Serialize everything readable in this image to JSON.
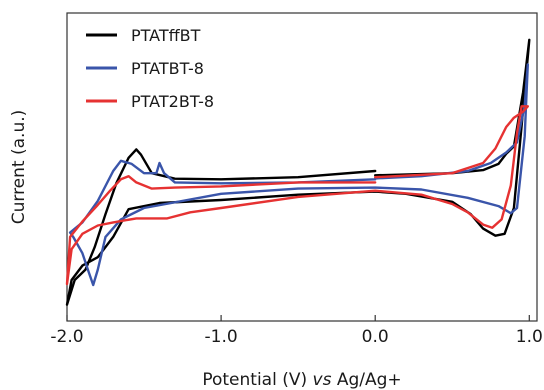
{
  "chart_data": {
    "type": "line",
    "xlabel_parts": [
      {
        "text": "Potential (V) ",
        "italic": false
      },
      {
        "text": "vs",
        "italic": true
      },
      {
        "text": " Ag/Ag+",
        "italic": false
      }
    ],
    "ylabel": "Current (a.u.)",
    "xlim": [
      -2.0,
      1.05
    ],
    "ylim": [
      0.0,
      1.0
    ],
    "x_ticks": [
      {
        "value": -2.0,
        "label": "-2.0"
      },
      {
        "value": -1.0,
        "label": "-1.0"
      },
      {
        "value": 0.0,
        "label": "0.0"
      },
      {
        "value": 1.0,
        "label": "1.0"
      }
    ],
    "y_ticks_shown": false,
    "grid": false,
    "legend_position": "top-left",
    "series": [
      {
        "name": "PTATffBT",
        "color": "#000000",
        "points": [
          [
            0.0,
            0.487
          ],
          [
            -0.5,
            0.467
          ],
          [
            -1.0,
            0.46
          ],
          [
            -1.3,
            0.462
          ],
          [
            -1.45,
            0.48
          ],
          [
            -1.52,
            0.54
          ],
          [
            -1.55,
            0.557
          ],
          [
            -1.6,
            0.53
          ],
          [
            -1.68,
            0.447
          ],
          [
            -1.75,
            0.347
          ],
          [
            -1.82,
            0.24
          ],
          [
            -1.88,
            0.167
          ],
          [
            -1.95,
            0.133
          ],
          [
            -2.0,
            0.053
          ],
          [
            -1.97,
            0.133
          ],
          [
            -1.9,
            0.18
          ],
          [
            -1.8,
            0.207
          ],
          [
            -1.7,
            0.273
          ],
          [
            -1.6,
            0.363
          ],
          [
            -1.4,
            0.383
          ],
          [
            -1.0,
            0.393
          ],
          [
            -0.5,
            0.41
          ],
          [
            0.0,
            0.42
          ],
          [
            0.2,
            0.413
          ],
          [
            0.5,
            0.387
          ],
          [
            0.62,
            0.347
          ],
          [
            0.7,
            0.3
          ],
          [
            0.78,
            0.277
          ],
          [
            0.84,
            0.283
          ],
          [
            0.9,
            0.367
          ],
          [
            0.95,
            0.633
          ],
          [
            1.0,
            0.913
          ],
          [
            0.96,
            0.743
          ],
          [
            0.9,
            0.567
          ],
          [
            0.85,
            0.543
          ],
          [
            0.8,
            0.51
          ],
          [
            0.7,
            0.49
          ],
          [
            0.5,
            0.48
          ],
          [
            0.3,
            0.477
          ],
          [
            0.0,
            0.473
          ]
        ]
      },
      {
        "name": "PTATBT-8",
        "color": "#3a55aa",
        "points": [
          [
            0.0,
            0.46
          ],
          [
            -0.5,
            0.45
          ],
          [
            -1.0,
            0.447
          ],
          [
            -1.3,
            0.45
          ],
          [
            -1.37,
            0.48
          ],
          [
            -1.4,
            0.513
          ],
          [
            -1.42,
            0.48
          ],
          [
            -1.5,
            0.48
          ],
          [
            -1.58,
            0.51
          ],
          [
            -1.65,
            0.52
          ],
          [
            -1.7,
            0.487
          ],
          [
            -1.8,
            0.39
          ],
          [
            -1.9,
            0.32
          ],
          [
            -1.98,
            0.287
          ],
          [
            -1.96,
            0.273
          ],
          [
            -1.9,
            0.22
          ],
          [
            -1.86,
            0.16
          ],
          [
            -1.83,
            0.117
          ],
          [
            -1.8,
            0.167
          ],
          [
            -1.75,
            0.273
          ],
          [
            -1.65,
            0.33
          ],
          [
            -1.5,
            0.367
          ],
          [
            -1.0,
            0.413
          ],
          [
            -0.5,
            0.43
          ],
          [
            0.0,
            0.433
          ],
          [
            0.3,
            0.427
          ],
          [
            0.6,
            0.4
          ],
          [
            0.8,
            0.373
          ],
          [
            0.88,
            0.35
          ],
          [
            0.92,
            0.367
          ],
          [
            0.97,
            0.6
          ],
          [
            0.99,
            0.833
          ],
          [
            0.97,
            0.7
          ],
          [
            0.92,
            0.58
          ],
          [
            0.85,
            0.547
          ],
          [
            0.75,
            0.513
          ],
          [
            0.6,
            0.487
          ],
          [
            0.3,
            0.47
          ],
          [
            0.0,
            0.463
          ]
        ]
      },
      {
        "name": "PTAT2BT-8",
        "color": "#e63232",
        "points": [
          [
            0.0,
            0.45
          ],
          [
            -0.5,
            0.45
          ],
          [
            -1.0,
            0.437
          ],
          [
            -1.3,
            0.433
          ],
          [
            -1.45,
            0.43
          ],
          [
            -1.55,
            0.45
          ],
          [
            -1.6,
            0.47
          ],
          [
            -1.65,
            0.46
          ],
          [
            -1.72,
            0.423
          ],
          [
            -1.8,
            0.377
          ],
          [
            -1.9,
            0.323
          ],
          [
            -1.98,
            0.273
          ],
          [
            -2.0,
            0.12
          ],
          [
            -1.97,
            0.233
          ],
          [
            -1.9,
            0.283
          ],
          [
            -1.8,
            0.31
          ],
          [
            -1.7,
            0.32
          ],
          [
            -1.55,
            0.333
          ],
          [
            -1.35,
            0.333
          ],
          [
            -1.2,
            0.353
          ],
          [
            -1.0,
            0.367
          ],
          [
            -0.5,
            0.403
          ],
          [
            0.0,
            0.423
          ],
          [
            0.3,
            0.41
          ],
          [
            0.5,
            0.38
          ],
          [
            0.6,
            0.353
          ],
          [
            0.7,
            0.313
          ],
          [
            0.76,
            0.303
          ],
          [
            0.82,
            0.33
          ],
          [
            0.88,
            0.44
          ],
          [
            0.92,
            0.61
          ],
          [
            0.95,
            0.697
          ],
          [
            0.99,
            0.697
          ],
          [
            0.96,
            0.68
          ],
          [
            0.9,
            0.66
          ],
          [
            0.85,
            0.63
          ],
          [
            0.78,
            0.56
          ],
          [
            0.7,
            0.513
          ],
          [
            0.5,
            0.48
          ],
          [
            0.0,
            0.467
          ]
        ]
      }
    ]
  }
}
